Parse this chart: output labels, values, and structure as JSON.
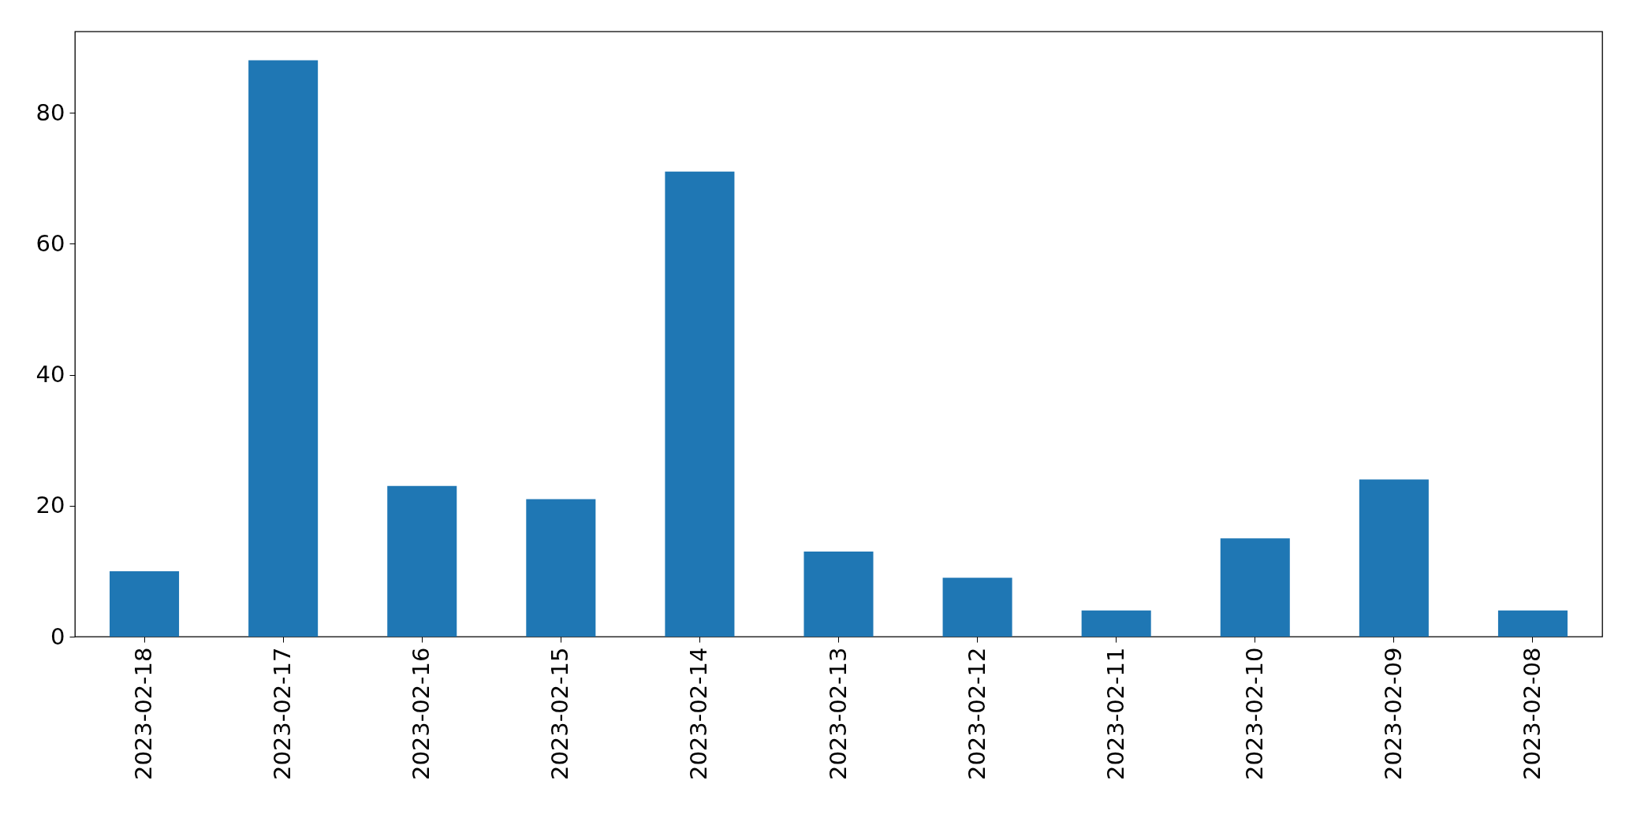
{
  "chart_data": {
    "type": "bar",
    "categories": [
      "2023-02-18",
      "2023-02-17",
      "2023-02-16",
      "2023-02-15",
      "2023-02-14",
      "2023-02-13",
      "2023-02-12",
      "2023-02-11",
      "2023-02-10",
      "2023-02-09",
      "2023-02-08"
    ],
    "values": [
      10,
      88,
      23,
      21,
      71,
      13,
      9,
      4,
      15,
      24,
      4
    ],
    "color": "#1f77b4",
    "ylim": [
      0,
      92.4
    ],
    "yticks": [
      0,
      20,
      40,
      60,
      80
    ]
  }
}
